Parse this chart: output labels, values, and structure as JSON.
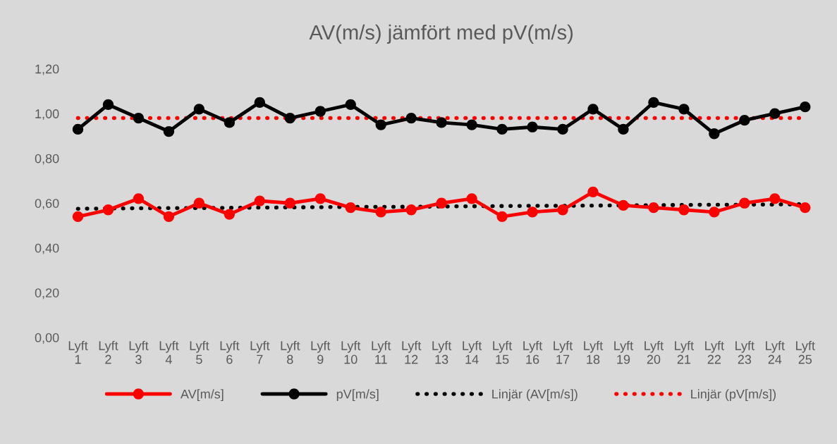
{
  "chart_data": {
    "type": "line",
    "title": "AV(m/s) jämfört med pV(m/s)",
    "categories": [
      "Lyft\n1",
      "Lyft\n2",
      "Lyft\n3",
      "Lyft\n4",
      "Lyft\n5",
      "Lyft\n6",
      "Lyft\n7",
      "Lyft\n8",
      "Lyft\n9",
      "Lyft\n10",
      "Lyft\n11",
      "Lyft\n12",
      "Lyft\n13",
      "Lyft\n14",
      "Lyft\n15",
      "Lyft\n16",
      "Lyft\n17",
      "Lyft\n18",
      "Lyft\n19",
      "Lyft\n20",
      "Lyft\n21",
      "Lyft\n22",
      "Lyft\n23",
      "Lyft\n24",
      "Lyft\n25"
    ],
    "series": [
      {
        "name": "AV[m/s]",
        "color": "#ff0000",
        "marker": "circle",
        "line_style": "solid",
        "values": [
          0.54,
          0.57,
          0.62,
          0.54,
          0.6,
          0.55,
          0.61,
          0.6,
          0.62,
          0.58,
          0.56,
          0.57,
          0.6,
          0.62,
          0.54,
          0.56,
          0.57,
          0.65,
          0.59,
          0.58,
          0.57,
          0.56,
          0.6,
          0.62,
          0.58
        ]
      },
      {
        "name": "pV[m/s]",
        "color": "#000000",
        "marker": "circle",
        "line_style": "solid",
        "values": [
          0.93,
          1.04,
          0.98,
          0.92,
          1.02,
          0.96,
          1.05,
          0.98,
          1.01,
          1.04,
          0.95,
          0.98,
          0.96,
          0.95,
          0.93,
          0.94,
          0.93,
          1.02,
          0.93,
          1.05,
          1.02,
          0.91,
          0.97,
          1.0,
          1.03
        ]
      },
      {
        "name": "Linjär (AV[m/s])",
        "color": "#000000",
        "marker": "none",
        "line_style": "dotted",
        "values": [
          0.575,
          0.576,
          0.577,
          0.578,
          0.578,
          0.579,
          0.58,
          0.581,
          0.582,
          0.583,
          0.583,
          0.584,
          0.585,
          0.586,
          0.587,
          0.588,
          0.588,
          0.589,
          0.59,
          0.591,
          0.592,
          0.593,
          0.593,
          0.594,
          0.595
        ]
      },
      {
        "name": "Linjär (pV[m/s])",
        "color": "#ff0000",
        "marker": "none",
        "line_style": "dotted",
        "values": [
          0.98,
          0.98,
          0.98,
          0.98,
          0.98,
          0.98,
          0.98,
          0.98,
          0.98,
          0.98,
          0.98,
          0.98,
          0.98,
          0.98,
          0.98,
          0.98,
          0.98,
          0.98,
          0.98,
          0.98,
          0.98,
          0.98,
          0.98,
          0.98,
          0.98
        ]
      }
    ],
    "ylim": [
      0,
      1.2
    ],
    "yticks": [
      {
        "value": 0,
        "label": "0,00"
      },
      {
        "value": 0.2,
        "label": "0,20"
      },
      {
        "value": 0.4,
        "label": "0,40"
      },
      {
        "value": 0.6,
        "label": "0,60"
      },
      {
        "value": 0.8,
        "label": "0,80"
      },
      {
        "value": 1.0,
        "label": "1,00"
      },
      {
        "value": 1.2,
        "label": "1,20"
      }
    ],
    "grid": false,
    "legend": "bottom"
  }
}
